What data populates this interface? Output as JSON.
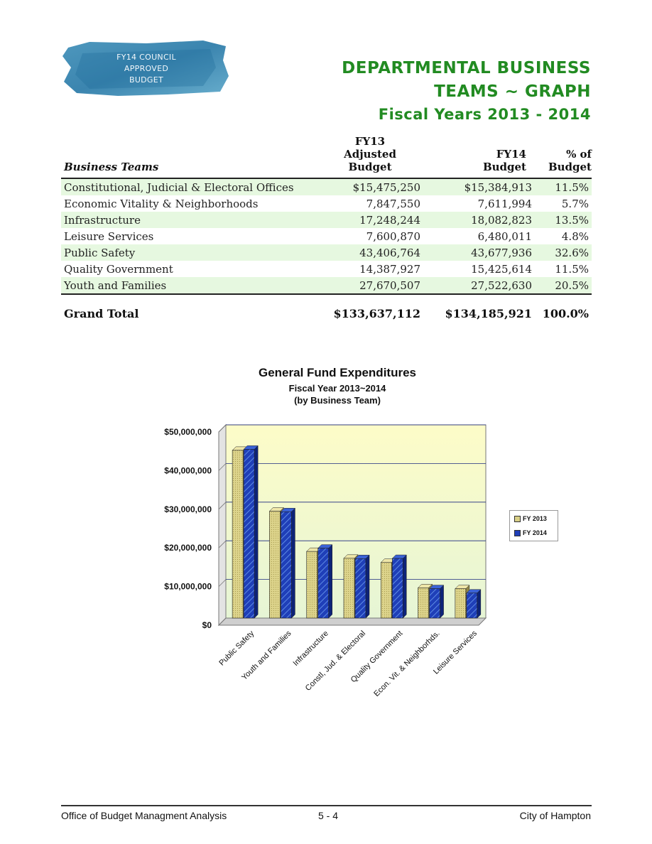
{
  "badge": {
    "lines": [
      "FY14 COUNCIL",
      "APPROVED",
      "BUDGET"
    ]
  },
  "title": {
    "line1": "DEPARTMENTAL BUSINESS",
    "line2": "TEAMS ~ GRAPH",
    "line3": "Fiscal Years 2013 - 2014"
  },
  "table": {
    "headers": {
      "teams": "Business Teams",
      "fy13_l1": "FY13",
      "fy13_l2": "Adjusted",
      "fy13_l3": "Budget",
      "fy14_l1": "FY14",
      "fy14_l2": "Budget",
      "pct_l1": "% of",
      "pct_l2": "Budget"
    },
    "rows": [
      {
        "team": "Constitutional, Judicial & Electoral Offices",
        "fy13": "$15,475,250",
        "fy14": "$15,384,913",
        "pct": "11.5%"
      },
      {
        "team": "Economic Vitality & Neighborhoods",
        "fy13": "7,847,550",
        "fy14": "7,611,994",
        "pct": "5.7%"
      },
      {
        "team": "Infrastructure",
        "fy13": "17,248,244",
        "fy14": "18,082,823",
        "pct": "13.5%"
      },
      {
        "team": "Leisure Services",
        "fy13": "7,600,870",
        "fy14": "6,480,011",
        "pct": "4.8%"
      },
      {
        "team": "Public Safety",
        "fy13": "43,406,764",
        "fy14": "43,677,936",
        "pct": "32.6%"
      },
      {
        "team": "Quality Government",
        "fy13": "14,387,927",
        "fy14": "15,425,614",
        "pct": "11.5%"
      },
      {
        "team": "Youth and Families",
        "fy13": "27,670,507",
        "fy14": "27,522,630",
        "pct": "20.5%"
      }
    ],
    "total": {
      "label": "Grand Total",
      "fy13": "$133,637,112",
      "fy14": "$134,185,921",
      "pct": "100.0%"
    }
  },
  "chart_data": {
    "type": "bar",
    "title": "General Fund Expenditures",
    "subtitle1": "Fiscal Year 2013~2014",
    "subtitle2": "(by Business Team)",
    "categories": [
      "Public Safety",
      "Youth and Families",
      "Infrastructure",
      "Constl, Jud. & Electoral",
      "Quality Government",
      "Econ. Vit. & Neighborhds.",
      "Leisure Services"
    ],
    "series": [
      {
        "name": "FY 2013",
        "values": [
          43406764,
          27670507,
          17248244,
          15475250,
          14387927,
          7847550,
          7600870
        ],
        "color": "#d8cf86"
      },
      {
        "name": "FY 2014",
        "values": [
          43677936,
          27522630,
          18082823,
          15384913,
          15425614,
          7611994,
          6480011
        ],
        "color": "#1f3fb8"
      }
    ],
    "ylim": [
      0,
      50000000
    ],
    "yticks": [
      "$0",
      "$10,000,000",
      "$20,000,000",
      "$30,000,000",
      "$40,000,000",
      "$50,000,000"
    ],
    "grid": true,
    "legend": "right",
    "background_top": "#fdfcc8",
    "background_bottom": "#e6f5d5"
  },
  "footer": {
    "left": "Office of Budget Managment Analysis",
    "center": "5 - 4",
    "right": "City of Hampton"
  }
}
